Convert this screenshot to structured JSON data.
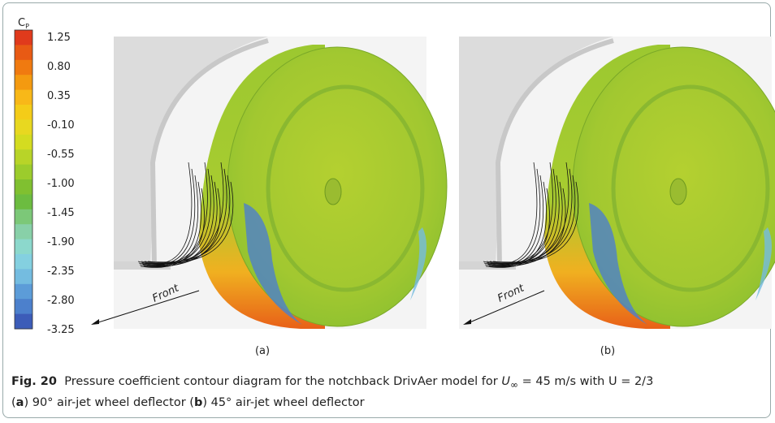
{
  "colorbar": {
    "title": "C",
    "title_sub": "P",
    "labels": [
      "1.25",
      "0.80",
      "0.35",
      "-0.10",
      "-0.55",
      "-1.00",
      "-1.45",
      "-1.90",
      "-2.35",
      "-2.80",
      "-3.25"
    ],
    "colors": [
      "#e03a1c",
      "#e85a14",
      "#f07a10",
      "#f49a10",
      "#f8b818",
      "#f4cc18",
      "#e8d820",
      "#d4dc20",
      "#b8d428",
      "#9ccc2c",
      "#80c030",
      "#6cbc40",
      "#7cc878",
      "#88d0a8",
      "#8cd8cc",
      "#84d0e0",
      "#74bce0",
      "#5c9cd8",
      "#4c80cc",
      "#3c5cb8"
    ]
  },
  "panels": [
    {
      "label": "(a)",
      "front": "Front"
    },
    {
      "label": "(b)",
      "front": "Front"
    }
  ],
  "caption": {
    "fig": "Fig. 20",
    "text": "Pressure coefficient contour diagram for the notchback DrivAer model for",
    "u": "U",
    "u_sub": "∞",
    "rest": "= 45 m/s with U = 2/3",
    "open_a": "(",
    "a": "a",
    "text_a": ") 90° air-jet wheel deflector (",
    "b": "b",
    "text_b": ") 45° air-jet wheel deflector"
  }
}
